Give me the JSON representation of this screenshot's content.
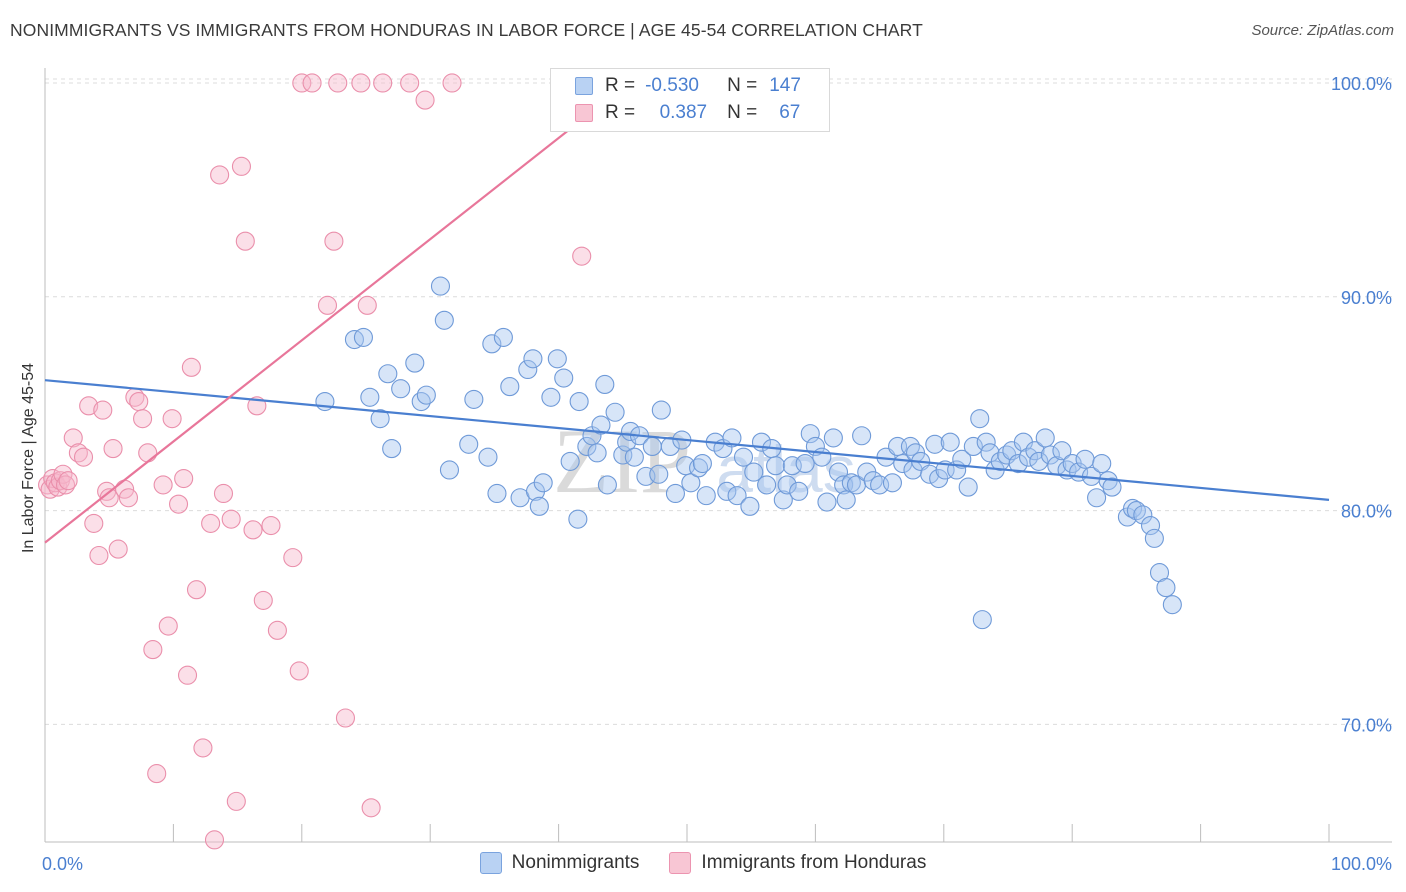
{
  "header": {
    "title": "NONIMMIGRANTS VS IMMIGRANTS FROM HONDURAS IN LABOR FORCE | AGE 45-54 CORRELATION CHART",
    "source": "Source: ZipAtlas.com"
  },
  "colors": {
    "blue": "#4a7fd0",
    "blue_fill": "#a7c6ef",
    "pink": "#e8769a",
    "pink_fill": "#f6b9cb",
    "grid": "#dcdcdc",
    "tick_label": "#4a7fd0"
  },
  "legend": {
    "rows": [
      {
        "r_label": "R =",
        "r_value": "-0.530",
        "n_label": "N =",
        "n_value": "147",
        "color": "blue"
      },
      {
        "r_label": "R =",
        "r_value": "0.387",
        "n_label": "N =",
        "n_value": "67",
        "color": "pink"
      }
    ]
  },
  "bottom_legend": {
    "nonimmigrants": "Nonimmigrants",
    "immigrants": "Immigrants from Honduras"
  },
  "watermark": {
    "zip": "ZIP",
    "atlas": "atlas"
  },
  "chart_data": {
    "type": "scatter",
    "title": "NONIMMIGRANTS VS IMMIGRANTS FROM HONDURAS IN LABOR FORCE | AGE 45-54 CORRELATION CHART",
    "xlabel": "",
    "ylabel": "In Labor Force | Age 45-54",
    "xlim": [
      0,
      100
    ],
    "ylim": [
      64.5,
      100.7
    ],
    "x_tick_labels": [
      "0.0%",
      "100.0%"
    ],
    "y_ticks": [
      70,
      80,
      90,
      100
    ],
    "y_tick_labels": [
      "70.0%",
      "80.0%",
      "90.0%",
      "100.0%"
    ],
    "grid": true,
    "legend_position": "top-center",
    "series": [
      {
        "name": "Nonimmigrants",
        "color": "#4a7fd0",
        "trend": {
          "x": [
            0,
            100
          ],
          "y": [
            86.1,
            80.5
          ]
        },
        "points": [
          [
            21.8,
            85.1
          ],
          [
            24.1,
            88.0
          ],
          [
            24.8,
            88.1
          ],
          [
            25.3,
            85.3
          ],
          [
            26.1,
            84.3
          ],
          [
            26.7,
            86.4
          ],
          [
            27.0,
            82.9
          ],
          [
            27.7,
            85.7
          ],
          [
            28.8,
            86.9
          ],
          [
            29.3,
            85.1
          ],
          [
            29.7,
            85.4
          ],
          [
            30.8,
            90.5
          ],
          [
            31.1,
            88.9
          ],
          [
            31.5,
            81.9
          ],
          [
            33.0,
            83.1
          ],
          [
            33.4,
            85.2
          ],
          [
            34.5,
            82.5
          ],
          [
            34.8,
            87.8
          ],
          [
            35.2,
            80.8
          ],
          [
            35.7,
            88.1
          ],
          [
            36.2,
            85.8
          ],
          [
            37.0,
            80.6
          ],
          [
            37.6,
            86.6
          ],
          [
            38.0,
            87.1
          ],
          [
            38.2,
            80.9
          ],
          [
            38.5,
            80.2
          ],
          [
            38.8,
            81.3
          ],
          [
            39.4,
            85.3
          ],
          [
            39.9,
            87.1
          ],
          [
            40.4,
            86.2
          ],
          [
            40.9,
            82.3
          ],
          [
            41.5,
            79.6
          ],
          [
            41.6,
            85.1
          ],
          [
            42.2,
            83.0
          ],
          [
            42.6,
            83.5
          ],
          [
            43.0,
            82.7
          ],
          [
            43.3,
            84.0
          ],
          [
            43.6,
            85.9
          ],
          [
            43.8,
            81.2
          ],
          [
            44.4,
            84.6
          ],
          [
            45.0,
            82.6
          ],
          [
            45.3,
            83.2
          ],
          [
            45.6,
            83.7
          ],
          [
            45.9,
            82.5
          ],
          [
            46.3,
            83.5
          ],
          [
            46.8,
            81.6
          ],
          [
            47.3,
            83.0
          ],
          [
            47.8,
            81.7
          ],
          [
            48.0,
            84.7
          ],
          [
            48.7,
            83.0
          ],
          [
            49.1,
            80.8
          ],
          [
            49.6,
            83.3
          ],
          [
            49.9,
            82.1
          ],
          [
            50.3,
            81.3
          ],
          [
            50.9,
            82.0
          ],
          [
            51.2,
            82.2
          ],
          [
            51.5,
            80.7
          ],
          [
            52.2,
            83.2
          ],
          [
            52.8,
            82.9
          ],
          [
            53.1,
            80.9
          ],
          [
            53.5,
            83.4
          ],
          [
            53.9,
            80.7
          ],
          [
            54.4,
            82.5
          ],
          [
            54.9,
            80.2
          ],
          [
            55.2,
            81.8
          ],
          [
            55.8,
            83.2
          ],
          [
            56.2,
            81.2
          ],
          [
            56.6,
            82.9
          ],
          [
            56.9,
            82.1
          ],
          [
            57.5,
            80.5
          ],
          [
            57.8,
            81.2
          ],
          [
            58.2,
            82.1
          ],
          [
            58.7,
            80.9
          ],
          [
            59.2,
            82.2
          ],
          [
            59.6,
            83.6
          ],
          [
            60.0,
            83.0
          ],
          [
            60.5,
            82.5
          ],
          [
            60.9,
            80.4
          ],
          [
            61.4,
            83.4
          ],
          [
            61.8,
            81.8
          ],
          [
            62.2,
            81.2
          ],
          [
            62.4,
            80.5
          ],
          [
            62.8,
            81.3
          ],
          [
            63.2,
            81.2
          ],
          [
            63.6,
            83.5
          ],
          [
            64.0,
            81.8
          ],
          [
            64.5,
            81.4
          ],
          [
            65.0,
            81.2
          ],
          [
            65.5,
            82.5
          ],
          [
            66.0,
            81.3
          ],
          [
            66.4,
            83.0
          ],
          [
            66.8,
            82.2
          ],
          [
            67.4,
            83.0
          ],
          [
            67.6,
            81.9
          ],
          [
            67.8,
            82.7
          ],
          [
            68.2,
            82.3
          ],
          [
            68.9,
            81.7
          ],
          [
            69.3,
            83.1
          ],
          [
            69.6,
            81.5
          ],
          [
            70.1,
            81.9
          ],
          [
            70.5,
            83.2
          ],
          [
            71.0,
            81.9
          ],
          [
            71.4,
            82.4
          ],
          [
            71.9,
            81.1
          ],
          [
            72.3,
            83.0
          ],
          [
            72.8,
            84.3
          ],
          [
            73.3,
            83.2
          ],
          [
            73.6,
            82.7
          ],
          [
            74.0,
            81.9
          ],
          [
            74.4,
            82.3
          ],
          [
            74.9,
            82.6
          ],
          [
            75.3,
            82.8
          ],
          [
            75.8,
            82.2
          ],
          [
            76.2,
            83.2
          ],
          [
            76.6,
            82.5
          ],
          [
            77.1,
            82.8
          ],
          [
            77.4,
            82.3
          ],
          [
            77.9,
            83.4
          ],
          [
            78.3,
            82.6
          ],
          [
            78.8,
            82.1
          ],
          [
            79.2,
            82.8
          ],
          [
            79.6,
            81.9
          ],
          [
            80.0,
            82.2
          ],
          [
            80.5,
            81.8
          ],
          [
            81.0,
            82.4
          ],
          [
            81.5,
            81.6
          ],
          [
            81.9,
            80.6
          ],
          [
            82.3,
            82.2
          ],
          [
            82.8,
            81.4
          ],
          [
            83.1,
            81.1
          ],
          [
            84.3,
            79.7
          ],
          [
            84.7,
            80.1
          ],
          [
            85.0,
            80.0
          ],
          [
            85.5,
            79.8
          ],
          [
            86.1,
            79.3
          ],
          [
            86.4,
            78.7
          ],
          [
            86.8,
            77.1
          ],
          [
            87.3,
            76.4
          ],
          [
            87.8,
            75.6
          ],
          [
            73.0,
            74.9
          ]
        ]
      },
      {
        "name": "Immigrants from Honduras",
        "color": "#e8769a",
        "trend": {
          "x": [
            0,
            46.5
          ],
          "y": [
            78.5,
            100.5
          ]
        },
        "points": [
          [
            0.2,
            81.2
          ],
          [
            0.4,
            81.0
          ],
          [
            0.6,
            81.5
          ],
          [
            0.8,
            81.3
          ],
          [
            1.0,
            81.1
          ],
          [
            1.2,
            81.4
          ],
          [
            1.4,
            81.7
          ],
          [
            1.6,
            81.2
          ],
          [
            1.8,
            81.4
          ],
          [
            2.2,
            83.4
          ],
          [
            2.6,
            82.7
          ],
          [
            3.0,
            82.5
          ],
          [
            3.4,
            84.9
          ],
          [
            3.8,
            79.4
          ],
          [
            4.2,
            77.9
          ],
          [
            4.5,
            84.7
          ],
          [
            4.8,
            80.9
          ],
          [
            5.0,
            80.6
          ],
          [
            5.3,
            82.9
          ],
          [
            5.7,
            78.2
          ],
          [
            6.2,
            81.0
          ],
          [
            6.5,
            80.6
          ],
          [
            7.0,
            85.3
          ],
          [
            7.3,
            85.1
          ],
          [
            7.6,
            84.3
          ],
          [
            8.0,
            82.7
          ],
          [
            8.4,
            73.5
          ],
          [
            8.7,
            67.7
          ],
          [
            9.2,
            81.2
          ],
          [
            9.6,
            74.6
          ],
          [
            9.9,
            84.3
          ],
          [
            10.4,
            80.3
          ],
          [
            10.8,
            81.5
          ],
          [
            11.1,
            72.3
          ],
          [
            11.4,
            86.7
          ],
          [
            11.8,
            76.3
          ],
          [
            12.3,
            68.9
          ],
          [
            12.9,
            79.4
          ],
          [
            13.2,
            64.6
          ],
          [
            13.6,
            95.7
          ],
          [
            13.9,
            80.8
          ],
          [
            14.5,
            79.6
          ],
          [
            14.9,
            66.4
          ],
          [
            15.3,
            96.1
          ],
          [
            15.6,
            92.6
          ],
          [
            16.2,
            79.1
          ],
          [
            16.5,
            84.9
          ],
          [
            17.0,
            75.8
          ],
          [
            17.6,
            79.3
          ],
          [
            18.1,
            74.4
          ],
          [
            19.3,
            77.8
          ],
          [
            19.8,
            72.5
          ],
          [
            20.0,
            100.0
          ],
          [
            20.8,
            100.0
          ],
          [
            22.0,
            89.6
          ],
          [
            22.5,
            92.6
          ],
          [
            22.8,
            100.0
          ],
          [
            23.4,
            70.3
          ],
          [
            24.6,
            100.0
          ],
          [
            25.1,
            89.6
          ],
          [
            25.4,
            66.1
          ],
          [
            26.3,
            100.0
          ],
          [
            28.4,
            100.0
          ],
          [
            29.6,
            99.2
          ],
          [
            31.7,
            100.0
          ],
          [
            41.8,
            91.9
          ]
        ]
      }
    ]
  }
}
